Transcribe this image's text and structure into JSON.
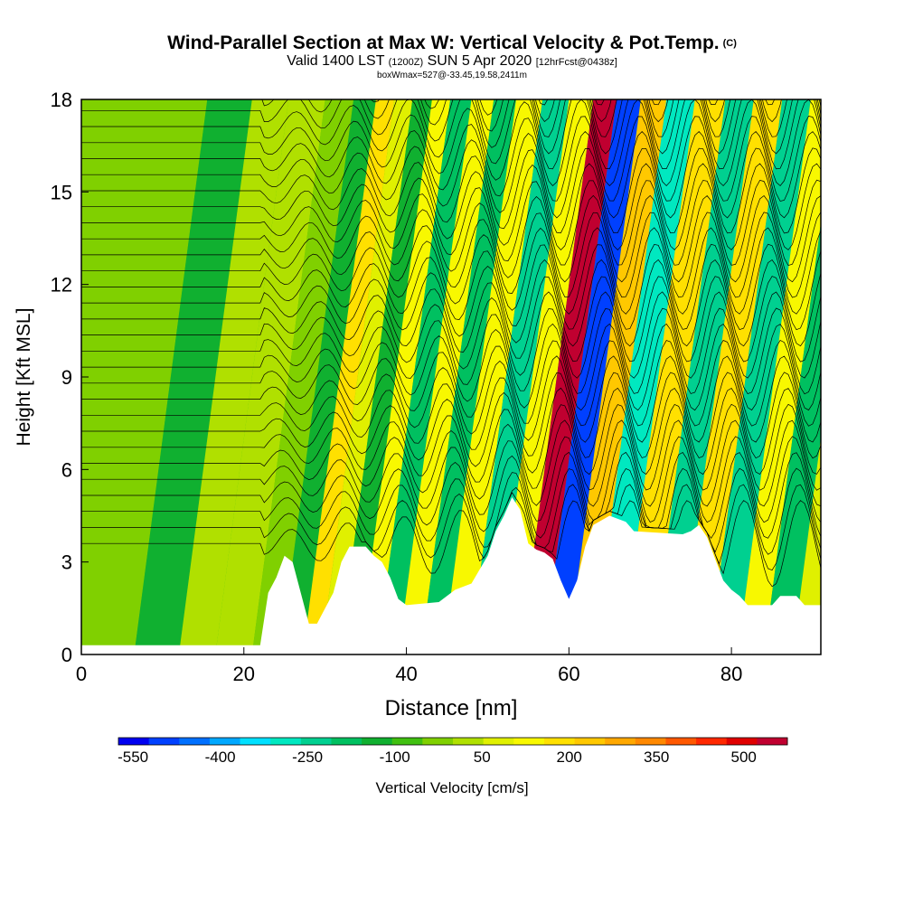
{
  "header": {
    "title": "Wind-Parallel Section at Max W: Vertical Velocity & Pot.Temp.",
    "copyright": "(C)",
    "valid_prefix": "Valid 1400 LST",
    "valid_utc": "(1200Z)",
    "valid_date": "SUN 5 Apr 2020",
    "forecast": "[12hrFcst@0438z]",
    "box_info": "boxWmax=527@-33.45,19.58,2411m"
  },
  "colors": {
    "palette": [
      "#0000f0",
      "#0040ff",
      "#0070ff",
      "#00a8ff",
      "#00e0ff",
      "#00e8c0",
      "#00d090",
      "#00c060",
      "#10b030",
      "#40c010",
      "#80d000",
      "#b0e000",
      "#e0f000",
      "#f8f800",
      "#ffe000",
      "#ffc800",
      "#ffa800",
      "#ff8800",
      "#ff5800",
      "#ff2800",
      "#e00000",
      "#c00030"
    ],
    "terrain": "#ffffff",
    "contour": "#000000"
  },
  "chart_data": {
    "type": "heatmap",
    "xlabel": "Distance [nm]",
    "ylabel": "Height [Kft MSL]",
    "xlim": [
      0,
      91
    ],
    "ylim": [
      0,
      18
    ],
    "x_ticks": [
      "0",
      "20",
      "40",
      "60",
      "80"
    ],
    "y_ticks": [
      "0",
      "3",
      "6",
      "9",
      "12",
      "15",
      "18"
    ],
    "colorbar": {
      "label": "Vertical Velocity [cm/s]",
      "tick_labels": [
        "-550",
        "-400",
        "-250",
        "-100",
        "50",
        "200",
        "350",
        "500"
      ],
      "range": [
        -575,
        575
      ],
      "levels": 22
    },
    "max_w_cm_s": 527,
    "terrain_kft": [
      [
        0,
        0.3
      ],
      [
        10,
        0.3
      ],
      [
        22,
        0.3
      ],
      [
        23,
        2.0
      ],
      [
        24,
        2.5
      ],
      [
        25,
        3.2
      ],
      [
        26,
        3.0
      ],
      [
        27,
        2.0
      ],
      [
        28,
        1.0
      ],
      [
        29,
        1.0
      ],
      [
        30,
        1.5
      ],
      [
        31,
        2.0
      ],
      [
        32,
        3.0
      ],
      [
        33,
        3.5
      ],
      [
        35,
        3.5
      ],
      [
        36,
        3.2
      ],
      [
        37,
        3.0
      ],
      [
        38,
        2.5
      ],
      [
        39,
        1.8
      ],
      [
        40,
        1.6
      ],
      [
        44,
        1.7
      ],
      [
        46,
        2.1
      ],
      [
        48,
        2.3
      ],
      [
        50,
        3.2
      ],
      [
        51,
        4.0
      ],
      [
        52,
        4.5
      ],
      [
        53,
        5.1
      ],
      [
        54,
        4.7
      ],
      [
        55,
        3.6
      ],
      [
        56,
        3.4
      ],
      [
        57,
        3.3
      ],
      [
        58,
        3.1
      ],
      [
        59,
        2.4
      ],
      [
        60,
        1.8
      ],
      [
        61,
        2.4
      ],
      [
        62,
        3.5
      ],
      [
        63,
        4.2
      ],
      [
        65,
        4.5
      ],
      [
        67,
        4.3
      ],
      [
        68,
        4.0
      ],
      [
        74,
        3.9
      ],
      [
        75,
        4.0
      ],
      [
        76,
        4.2
      ],
      [
        77,
        3.8
      ],
      [
        78,
        3.1
      ],
      [
        79,
        2.4
      ],
      [
        80,
        2.1
      ],
      [
        81,
        1.9
      ],
      [
        82,
        1.6
      ],
      [
        85,
        1.6
      ],
      [
        86,
        1.9
      ],
      [
        88,
        1.9
      ],
      [
        89,
        1.6
      ],
      [
        91,
        1.6
      ]
    ],
    "w_columns": [
      {
        "x": 3,
        "w": -40
      },
      {
        "x": 10,
        "w": -110
      },
      {
        "x": 14,
        "w": 10
      },
      {
        "x": 19,
        "w": 20
      },
      {
        "x": 23,
        "w": -20
      },
      {
        "x": 26,
        "w": -150
      },
      {
        "x": 28.5,
        "w": 180
      },
      {
        "x": 30.5,
        "w": 80
      },
      {
        "x": 33,
        "w": -130
      },
      {
        "x": 35.3,
        "w": 130
      },
      {
        "x": 37.5,
        "w": -160
      },
      {
        "x": 40.5,
        "w": 120
      },
      {
        "x": 43,
        "w": -180
      },
      {
        "x": 46,
        "w": 110
      },
      {
        "x": 49.5,
        "w": -220
      },
      {
        "x": 52.5,
        "w": 150
      },
      {
        "x": 55.5,
        "w": 527
      },
      {
        "x": 58.2,
        "w": -520
      },
      {
        "x": 61.5,
        "w": 220
      },
      {
        "x": 64.5,
        "w": -280
      },
      {
        "x": 68.5,
        "w": 200
      },
      {
        "x": 72,
        "w": -230
      },
      {
        "x": 75.5,
        "w": 180
      },
      {
        "x": 79,
        "w": -210
      },
      {
        "x": 82.5,
        "w": 120
      },
      {
        "x": 85.5,
        "w": -170
      },
      {
        "x": 89.5,
        "w": 80
      }
    ],
    "column_tilt_per_kft": 0.5,
    "isentropes_count": 36
  }
}
